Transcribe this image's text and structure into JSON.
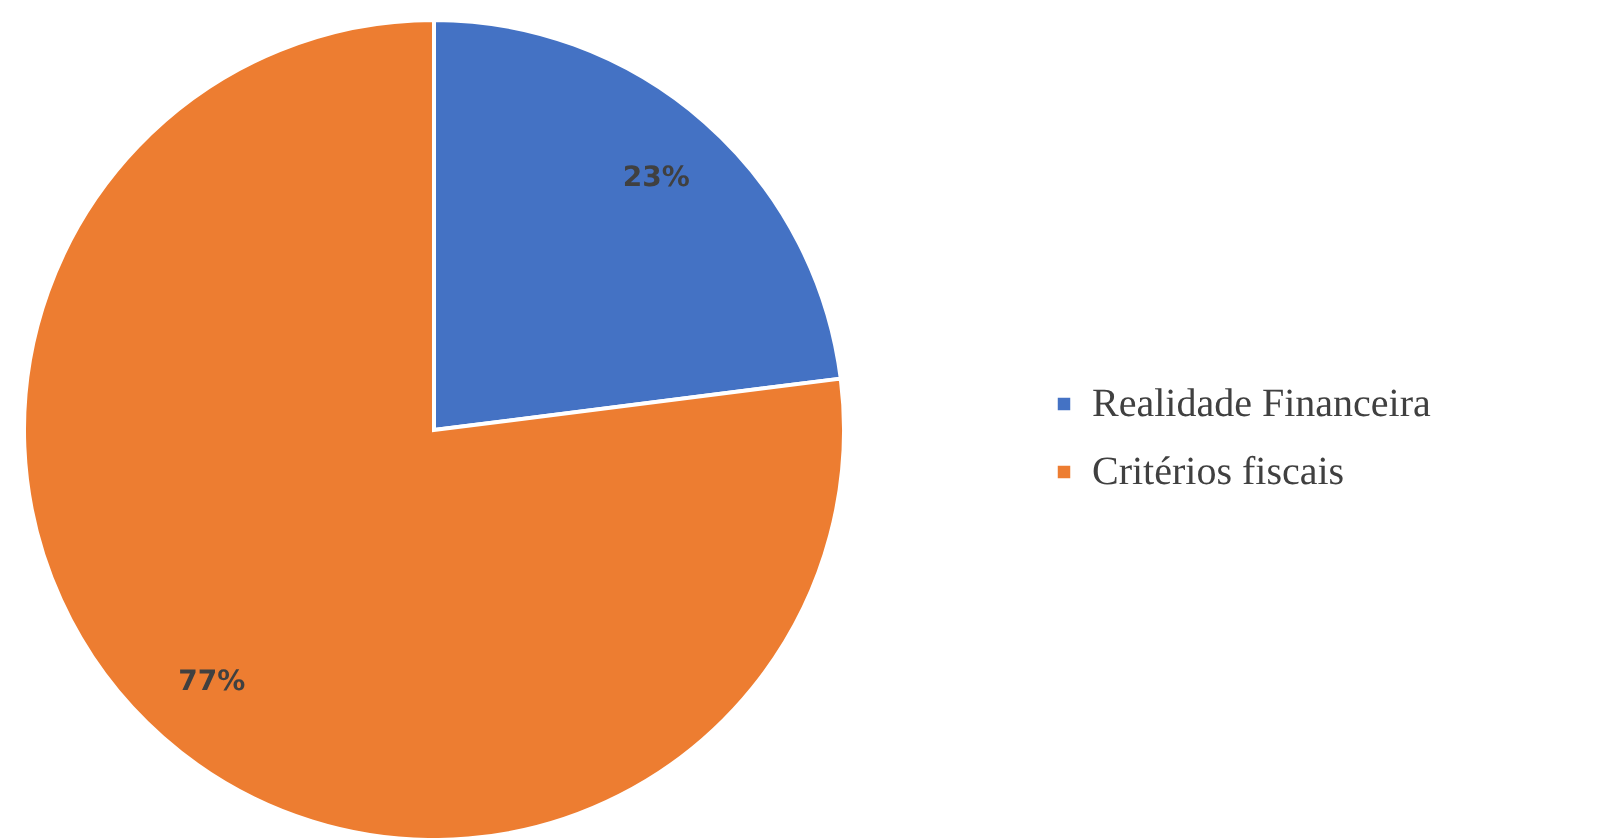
{
  "chart_data": {
    "type": "pie",
    "categories": [
      "Realidade Financeira",
      "Critérios fiscais"
    ],
    "values": [
      23,
      77
    ],
    "colors": [
      "#4472c4",
      "#ed7d31"
    ],
    "value_labels": [
      "23%",
      "77%"
    ],
    "legend": "right"
  }
}
